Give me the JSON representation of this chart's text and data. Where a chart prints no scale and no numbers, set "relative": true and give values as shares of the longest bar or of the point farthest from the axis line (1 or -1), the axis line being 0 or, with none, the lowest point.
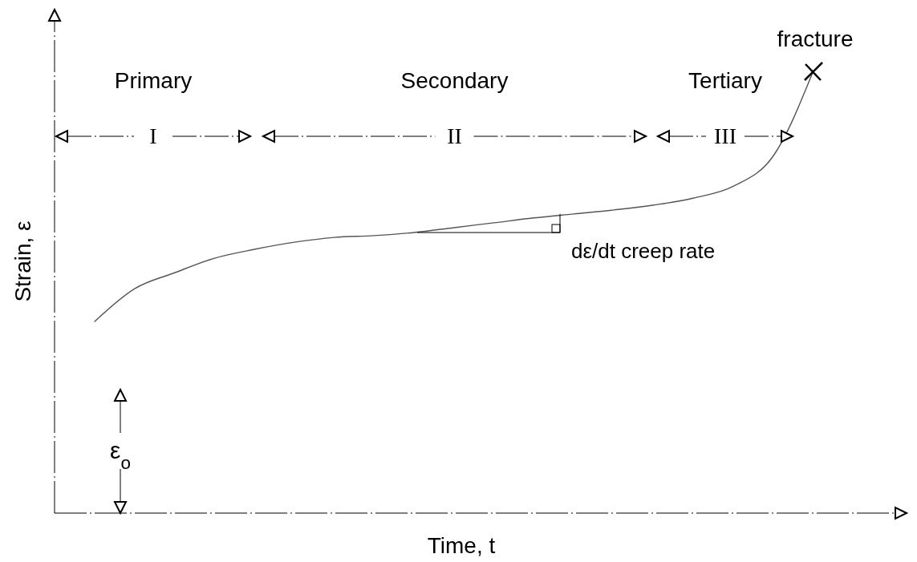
{
  "chart_data": {
    "type": "line",
    "relative": true,
    "xlabel": "Time, t",
    "ylabel": "Strain, ε",
    "categories": [
      null,
      null,
      null,
      null,
      null,
      null,
      null,
      null,
      null,
      null,
      null,
      null,
      null,
      null,
      null,
      null,
      null,
      null,
      null
    ],
    "series": [
      {
        "color": "#555555",
        "values": [
          0.433,
          0.507,
          0.543,
          0.576,
          0.596,
          0.612,
          0.623,
          0.627,
          0.634,
          0.645,
          0.656,
          0.667,
          0.676,
          0.685,
          0.696,
          0.712,
          0.739,
          0.808,
          1
        ]
      }
    ],
    "annotations": [
      "Primary",
      "I",
      "Secondary",
      "II",
      "Tertiary",
      "III",
      "dε/dt creep rate",
      "ε$_{o}$",
      {
        "text": "fracture",
        "y": 1
      }
    ],
    "marker": "none",
    "line_style": "solid"
  }
}
